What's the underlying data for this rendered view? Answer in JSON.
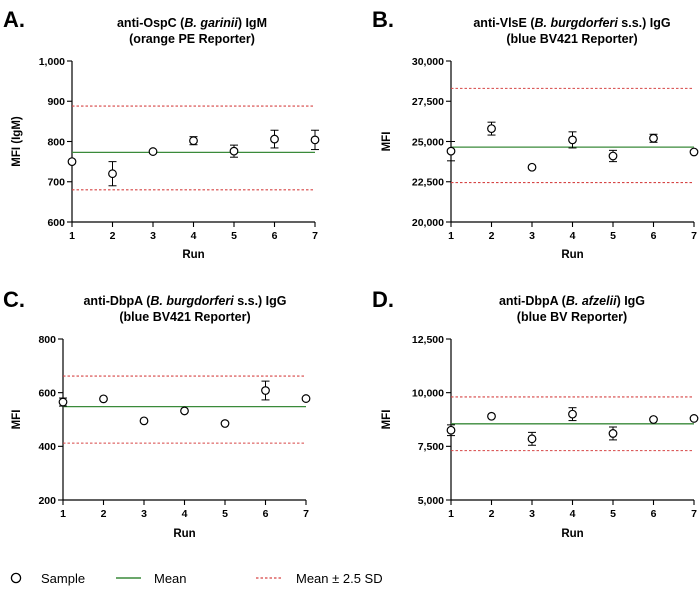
{
  "colors": {
    "mean": "#3a8a3a",
    "sd": "#d64545",
    "axis": "#000000",
    "marker": "#000000"
  },
  "legend": {
    "sample_label": "Sample",
    "mean_label": "Mean",
    "sd_label": "Mean ± 2.5 SD"
  },
  "chart_data": [
    {
      "panel": "A.",
      "type": "scatter",
      "title_parts": [
        [
          {
            "t": "anti-OspC ("
          },
          {
            "t": "B. garinii",
            "i": true
          },
          {
            "t": ") IgM"
          }
        ],
        [
          {
            "t": "(orange PE Reporter)"
          }
        ]
      ],
      "xlabel": "Run",
      "ylabel": "MFI (IgM)",
      "ylim": [
        600,
        1000
      ],
      "yticks": [
        600,
        700,
        800,
        900,
        1000
      ],
      "ytick_labels": [
        "600",
        "700",
        "800",
        "900",
        "1,000"
      ],
      "xticks": [
        1,
        2,
        3,
        4,
        5,
        6,
        7
      ],
      "xtick_labels": [
        "1",
        "2",
        "3",
        "4",
        "5",
        "6",
        "7"
      ],
      "x": [
        1,
        2,
        3,
        4,
        5,
        6,
        7
      ],
      "y": [
        750,
        720,
        775,
        802,
        776,
        806,
        804
      ],
      "err": [
        0,
        30,
        0,
        10,
        15,
        22,
        24
      ],
      "mean": 773,
      "upper": 888,
      "lower": 680
    },
    {
      "panel": "B.",
      "type": "scatter",
      "title_parts": [
        [
          {
            "t": "anti-VlsE ("
          },
          {
            "t": "B. burgdorferi",
            "i": true
          },
          {
            "t": " s.s.) IgG"
          }
        ],
        [
          {
            "t": "(blue BV421 Reporter)"
          }
        ]
      ],
      "xlabel": "Run",
      "ylabel": "MFI",
      "ylim": [
        20000,
        30000
      ],
      "yticks": [
        20000,
        22500,
        25000,
        27500,
        30000
      ],
      "ytick_labels": [
        "20,000",
        "22,500",
        "25,000",
        "27,500",
        "30,000"
      ],
      "xticks": [
        1,
        2,
        3,
        4,
        5,
        6,
        7
      ],
      "xtick_labels": [
        "1",
        "2",
        "3",
        "4",
        "5",
        "6",
        "7"
      ],
      "x": [
        1,
        2,
        3,
        4,
        5,
        6,
        7
      ],
      "y": [
        24400,
        25800,
        23400,
        25100,
        24100,
        25200,
        24350
      ],
      "err": [
        600,
        400,
        0,
        500,
        350,
        250,
        0
      ],
      "mean": 24650,
      "upper": 28300,
      "lower": 22450
    },
    {
      "panel": "C.",
      "type": "scatter",
      "title_parts": [
        [
          {
            "t": "anti-DbpA ("
          },
          {
            "t": "B. burgdorferi",
            "i": true
          },
          {
            "t": " s.s.) IgG"
          }
        ],
        [
          {
            "t": "(blue BV421 Reporter)"
          }
        ]
      ],
      "xlabel": "Run",
      "ylabel": "MFI",
      "ylim": [
        200,
        800
      ],
      "yticks": [
        200,
        400,
        600,
        800
      ],
      "ytick_labels": [
        "200",
        "400",
        "600",
        "800"
      ],
      "xticks": [
        1,
        2,
        3,
        4,
        5,
        6,
        7
      ],
      "xtick_labels": [
        "1",
        "2",
        "3",
        "4",
        "5",
        "6",
        "7"
      ],
      "x": [
        1,
        2,
        3,
        4,
        5,
        6,
        7
      ],
      "y": [
        565,
        577,
        495,
        532,
        485,
        608,
        578
      ],
      "err": [
        15,
        0,
        0,
        0,
        0,
        35,
        0
      ],
      "mean": 548,
      "upper": 662,
      "lower": 412
    },
    {
      "panel": "D.",
      "type": "scatter",
      "title_parts": [
        [
          {
            "t": "anti-DbpA ("
          },
          {
            "t": "B. afzelii",
            "i": true
          },
          {
            "t": ") IgG"
          }
        ],
        [
          {
            "t": "(blue BV Reporter)"
          }
        ]
      ],
      "xlabel": "Run",
      "ylabel": "MFI",
      "ylim": [
        5000,
        12500
      ],
      "yticks": [
        5000,
        7500,
        10000,
        12500
      ],
      "ytick_labels": [
        "5,000",
        "7,500",
        "10,000",
        "12,500"
      ],
      "xticks": [
        1,
        2,
        3,
        4,
        5,
        6,
        7
      ],
      "xtick_labels": [
        "1",
        "2",
        "3",
        "4",
        "5",
        "6",
        "7"
      ],
      "x": [
        1,
        2,
        3,
        4,
        5,
        6,
        7
      ],
      "y": [
        8250,
        8900,
        7850,
        9000,
        8100,
        8750,
        8800
      ],
      "err": [
        250,
        0,
        300,
        300,
        300,
        0,
        0
      ],
      "mean": 8550,
      "upper": 9800,
      "lower": 7300
    }
  ]
}
